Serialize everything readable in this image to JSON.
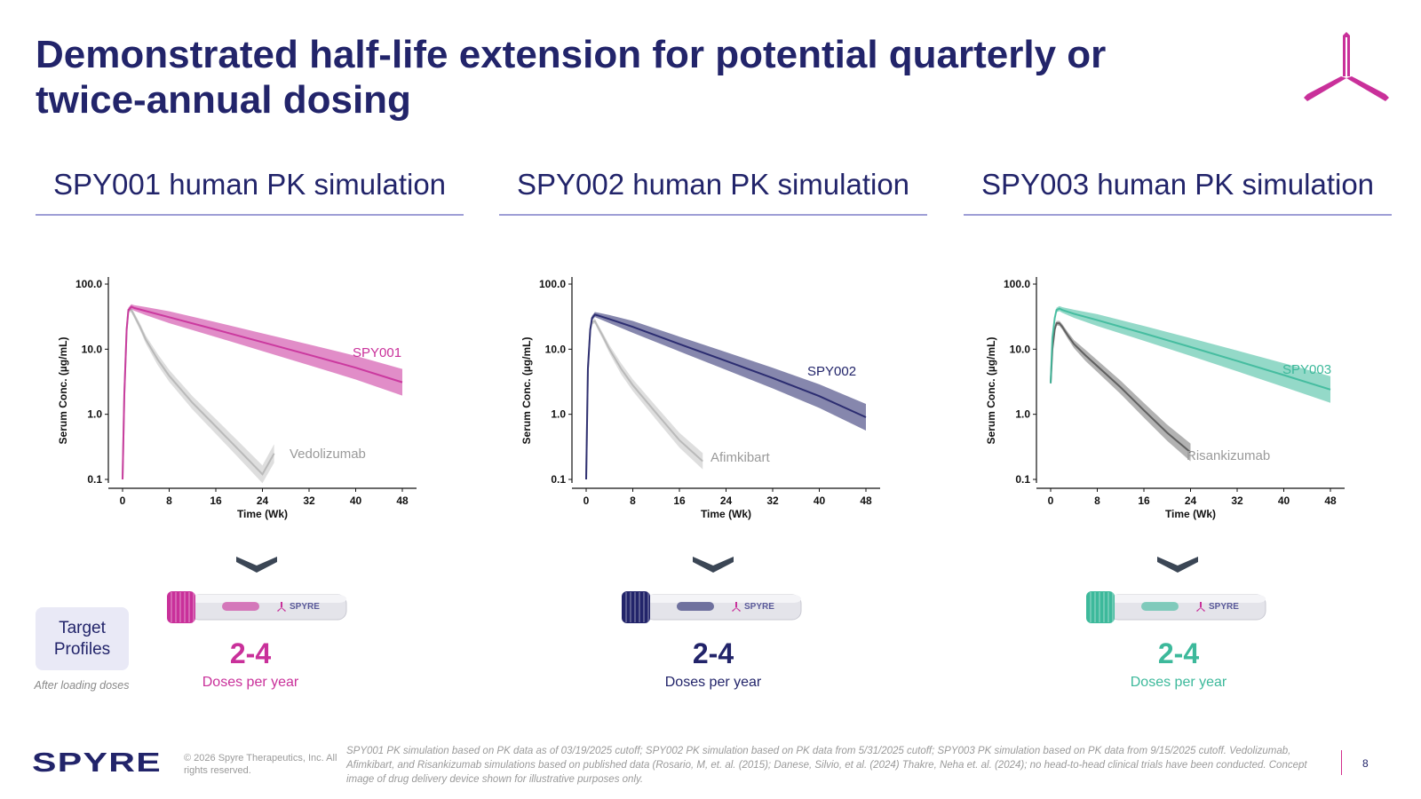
{
  "slide": {
    "title": "Demonstrated half-life extension for potential quarterly or twice-annual dosing",
    "brand_colors": {
      "navy": "#22246a",
      "magenta": "#c9309a",
      "teal": "#3db99b",
      "gray": "#9a9a9a"
    },
    "logo_mark_icon": "tri-blade-logo-icon"
  },
  "panels": [
    {
      "title": "SPY001 human PK simulation",
      "accent": "#c9309a",
      "doses": "2-4",
      "doses_label": "Doses per year",
      "device_label": "SPYRE",
      "chevron_icon": "chevron-down-icon"
    },
    {
      "title": "SPY002 human PK simulation",
      "accent": "#22246a",
      "doses": "2-4",
      "doses_label": "Doses per year",
      "device_label": "SPYRE",
      "chevron_icon": "chevron-down-icon"
    },
    {
      "title": "SPY003 human PK simulation",
      "accent": "#3db99b",
      "doses": "2-4",
      "doses_label": "Doses per year",
      "device_label": "SPYRE",
      "chevron_icon": "chevron-down-icon"
    }
  ],
  "chart_data": [
    {
      "type": "line",
      "ylabel": "Serum Conc. (µg/mL)",
      "xlabel": "Time (Wk)",
      "yscale": "log",
      "ylim": [
        0.1,
        100
      ],
      "xlim": [
        0,
        48
      ],
      "y_ticks": [
        "100.0",
        "10.0",
        "1.0",
        "0.1"
      ],
      "x_ticks": [
        0,
        8,
        16,
        24,
        32,
        40,
        48
      ],
      "series": [
        {
          "name": "SPY001",
          "color": "#c9309a",
          "band": true,
          "x": [
            0,
            0.3,
            0.7,
            1,
            1.5,
            2,
            4,
            8,
            16,
            24,
            32,
            40,
            48
          ],
          "y": [
            0.1,
            2,
            20,
            40,
            45,
            43,
            38.5,
            31,
            20,
            12.8,
            8.2,
            5.2,
            3.1
          ]
        },
        {
          "name": "Vedolizumab",
          "color": "#b5b5b5",
          "band": true,
          "x": [
            0,
            0.3,
            0.7,
            1,
            1.5,
            2,
            3,
            4,
            6,
            8,
            12,
            16,
            20,
            24,
            26
          ],
          "y": [
            0.1,
            2,
            20,
            40,
            40,
            33,
            22,
            14,
            7,
            3.9,
            1.5,
            0.65,
            0.28,
            0.12,
            0.25
          ]
        }
      ]
    },
    {
      "type": "line",
      "ylabel": "Serum Conc. (µg/mL)",
      "xlabel": "Time (Wk)",
      "yscale": "log",
      "ylim": [
        0.1,
        100
      ],
      "xlim": [
        0,
        48
      ],
      "y_ticks": [
        "100.0",
        "10.0",
        "1.0",
        "0.1"
      ],
      "x_ticks": [
        0,
        8,
        16,
        24,
        32,
        40,
        48
      ],
      "series": [
        {
          "name": "SPY002",
          "color": "#22246a",
          "band": true,
          "x": [
            0,
            0.3,
            0.7,
            1,
            1.5,
            2,
            4,
            8,
            16,
            24,
            32,
            40,
            48
          ],
          "y": [
            0.1,
            5,
            20,
            30,
            34,
            33,
            29,
            22,
            12,
            6.6,
            3.6,
            1.9,
            0.9
          ]
        },
        {
          "name": "Afimkibart",
          "color": "#b5b5b5",
          "band": true,
          "x": [
            0,
            0.3,
            0.7,
            1,
            1.5,
            2,
            3,
            4,
            6,
            8,
            12,
            16,
            20
          ],
          "y": [
            0.1,
            5,
            20,
            26,
            27,
            22,
            15,
            10,
            5,
            2.8,
            1.05,
            0.4,
            0.19
          ]
        }
      ]
    },
    {
      "type": "line",
      "ylabel": "Serum Conc. (µg/mL)",
      "xlabel": "Time (Wk)",
      "yscale": "log",
      "ylim": [
        0.1,
        100
      ],
      "xlim": [
        0,
        48
      ],
      "y_ticks": [
        "100.0",
        "10.0",
        "1.0",
        "0.1"
      ],
      "x_ticks": [
        0,
        8,
        16,
        24,
        32,
        40,
        48
      ],
      "series": [
        {
          "name": "SPY003",
          "color": "#3db99b",
          "band": true,
          "x": [
            0,
            0.3,
            0.7,
            1,
            1.5,
            2,
            4,
            8,
            16,
            24,
            32,
            40,
            48
          ],
          "y": [
            3,
            15,
            30,
            40,
            42,
            40,
            35,
            28,
            17.5,
            10.8,
            6.6,
            4.0,
            2.4
          ]
        },
        {
          "name": "Risankizumab",
          "color": "#555555",
          "band": true,
          "x": [
            0,
            0.3,
            0.7,
            1,
            1.5,
            2,
            3,
            4,
            6,
            8,
            12,
            16,
            20,
            24
          ],
          "y": [
            3,
            10,
            20,
            25,
            25,
            22,
            16,
            12,
            8,
            5.5,
            2.6,
            1.15,
            0.52,
            0.26
          ]
        }
      ]
    }
  ],
  "target": {
    "label": "Target Profiles",
    "note": "After loading doses"
  },
  "footer": {
    "logo_text": "SPYRE",
    "copyright": "© 2026 Spyre Therapeutics, Inc. All rights reserved.",
    "footnote": "SPY001 PK simulation based on PK data as of 03/19/2025 cutoff; SPY002 PK simulation based on PK data from 5/31/2025 cutoff; SPY003 PK simulation based on PK data from 9/15/2025 cutoff. Vedolizumab, Afimkibart, and Risankizumab simulations based on published data (Rosario, M, et. al. (2015); Danese, Silvio, et al. (2024) Thakre, Neha et. al. (2024); no head-to-head clinical trials have been conducted. Concept image of drug delivery device shown for illustrative purposes only.",
    "page_number": "8"
  }
}
